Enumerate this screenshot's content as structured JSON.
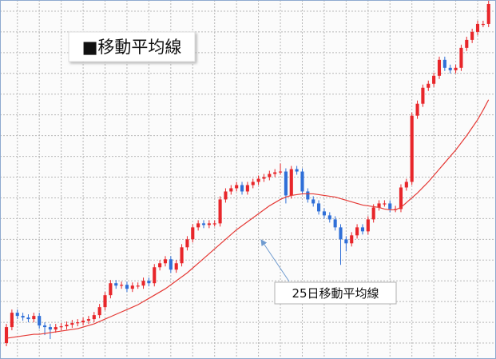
{
  "chart_data": {
    "type": "candlestick",
    "title": "■移動平均線",
    "up_color": "#e8262a",
    "down_color": "#2f6fd8",
    "x": [
      0,
      1,
      2,
      3,
      4,
      5,
      6,
      7,
      8,
      9,
      10,
      11,
      12,
      13,
      14,
      15,
      16,
      17,
      18,
      19,
      20,
      21,
      22,
      23,
      24,
      25,
      26,
      27,
      28,
      29,
      30,
      31,
      32,
      33,
      34,
      35,
      36,
      37,
      38,
      39,
      40,
      41,
      42,
      43,
      44,
      45,
      46,
      47,
      48,
      49,
      50,
      51,
      52,
      53,
      54,
      55,
      56,
      57,
      58,
      59,
      60,
      61,
      62,
      63,
      64,
      65,
      66,
      67,
      68,
      69,
      70,
      71,
      72,
      73,
      74,
      75,
      76,
      77,
      78,
      79,
      80,
      81,
      82,
      83,
      84,
      85,
      86,
      87,
      88
    ],
    "open": [
      20,
      40,
      58,
      54,
      52,
      50,
      54,
      42,
      40,
      37,
      40,
      41,
      43,
      45,
      46,
      48,
      50,
      55,
      65,
      80,
      95,
      92,
      93,
      88,
      92,
      92,
      98,
      95,
      115,
      120,
      125,
      112,
      120,
      140,
      150,
      165,
      170,
      168,
      170,
      170,
      200,
      210,
      214,
      218,
      210,
      218,
      222,
      226,
      228,
      232,
      234,
      235,
      205,
      238,
      235,
      210,
      200,
      195,
      185,
      180,
      175,
      165,
      150,
      145,
      155,
      165,
      160,
      175,
      190,
      195,
      195,
      188,
      188,
      215,
      222,
      305,
      320,
      340,
      345,
      355,
      375,
      365,
      362,
      365,
      390,
      400,
      410,
      420,
      420
    ],
    "high": [
      44,
      62,
      62,
      58,
      56,
      58,
      58,
      46,
      44,
      44,
      45,
      47,
      49,
      50,
      52,
      54,
      59,
      69,
      84,
      99,
      99,
      97,
      97,
      96,
      96,
      102,
      102,
      119,
      124,
      129,
      129,
      124,
      144,
      154,
      169,
      174,
      174,
      174,
      174,
      204,
      214,
      218,
      222,
      222,
      222,
      226,
      230,
      232,
      236,
      238,
      245,
      239,
      242,
      242,
      239,
      214,
      204,
      199,
      189,
      184,
      179,
      169,
      154,
      159,
      169,
      169,
      179,
      194,
      199,
      199,
      199,
      192,
      219,
      226,
      309,
      324,
      344,
      349,
      359,
      379,
      379,
      369,
      369,
      394,
      404,
      414,
      424,
      424,
      449
    ],
    "low": [
      16,
      36,
      50,
      48,
      46,
      46,
      38,
      30,
      25,
      33,
      36,
      37,
      39,
      41,
      42,
      44,
      46,
      51,
      61,
      76,
      88,
      88,
      84,
      84,
      88,
      88,
      91,
      91,
      111,
      116,
      108,
      108,
      116,
      136,
      146,
      161,
      164,
      164,
      166,
      166,
      196,
      206,
      210,
      206,
      206,
      214,
      218,
      222,
      224,
      228,
      231,
      195,
      201,
      231,
      206,
      196,
      191,
      181,
      176,
      171,
      161,
      118,
      135,
      141,
      151,
      156,
      156,
      171,
      186,
      191,
      184,
      184,
      184,
      211,
      218,
      301,
      316,
      336,
      341,
      351,
      361,
      358,
      358,
      361,
      386,
      396,
      406,
      416,
      416
    ],
    "close": [
      40,
      58,
      54,
      52,
      50,
      54,
      42,
      40,
      37,
      40,
      41,
      43,
      45,
      46,
      48,
      50,
      55,
      65,
      80,
      95,
      92,
      93,
      88,
      92,
      92,
      98,
      95,
      115,
      120,
      125,
      112,
      120,
      140,
      150,
      165,
      170,
      168,
      170,
      170,
      200,
      210,
      214,
      218,
      210,
      218,
      222,
      226,
      228,
      232,
      234,
      235,
      205,
      238,
      235,
      210,
      200,
      195,
      185,
      180,
      175,
      165,
      150,
      145,
      155,
      165,
      160,
      175,
      190,
      195,
      195,
      188,
      188,
      215,
      222,
      305,
      320,
      340,
      345,
      355,
      375,
      365,
      362,
      365,
      390,
      400,
      410,
      420,
      420,
      445
    ],
    "series": [
      {
        "name": "25日移動平均線",
        "color": "#e53935",
        "values": [
          26,
          27,
          28,
          29,
          30,
          31,
          31,
          32,
          33,
          34,
          35,
          36,
          37,
          38,
          40,
          42,
          44,
          47,
          50,
          53,
          56,
          59,
          62,
          65,
          68,
          72,
          76,
          80,
          84,
          88,
          93,
          98,
          103,
          108,
          114,
          120,
          126,
          132,
          138,
          144,
          150,
          156,
          162,
          167,
          172,
          177,
          182,
          187,
          192,
          196,
          200,
          203,
          205,
          206,
          207,
          207,
          207,
          206,
          205,
          204,
          203,
          201,
          199,
          197,
          195,
          193,
          192,
          191,
          190,
          188,
          187,
          187,
          190,
          196,
          202,
          208,
          215,
          222,
          230,
          238,
          246,
          254,
          262,
          271,
          280,
          290,
          300,
          312,
          325
        ]
      }
    ],
    "xlim": [
      -1.17,
      89.35
    ],
    "ylim": [
      0,
      450
    ],
    "xticks": [
      2,
      6,
      10,
      14,
      18,
      22,
      26,
      30,
      34,
      38,
      42,
      46,
      50,
      54,
      58,
      62,
      66,
      70,
      74,
      78,
      82,
      86
    ],
    "yticks": [
      20,
      46,
      72,
      98,
      124,
      150,
      176,
      202,
      228,
      254,
      280,
      306,
      332,
      358,
      384,
      410,
      436
    ],
    "grid": true
  }
}
